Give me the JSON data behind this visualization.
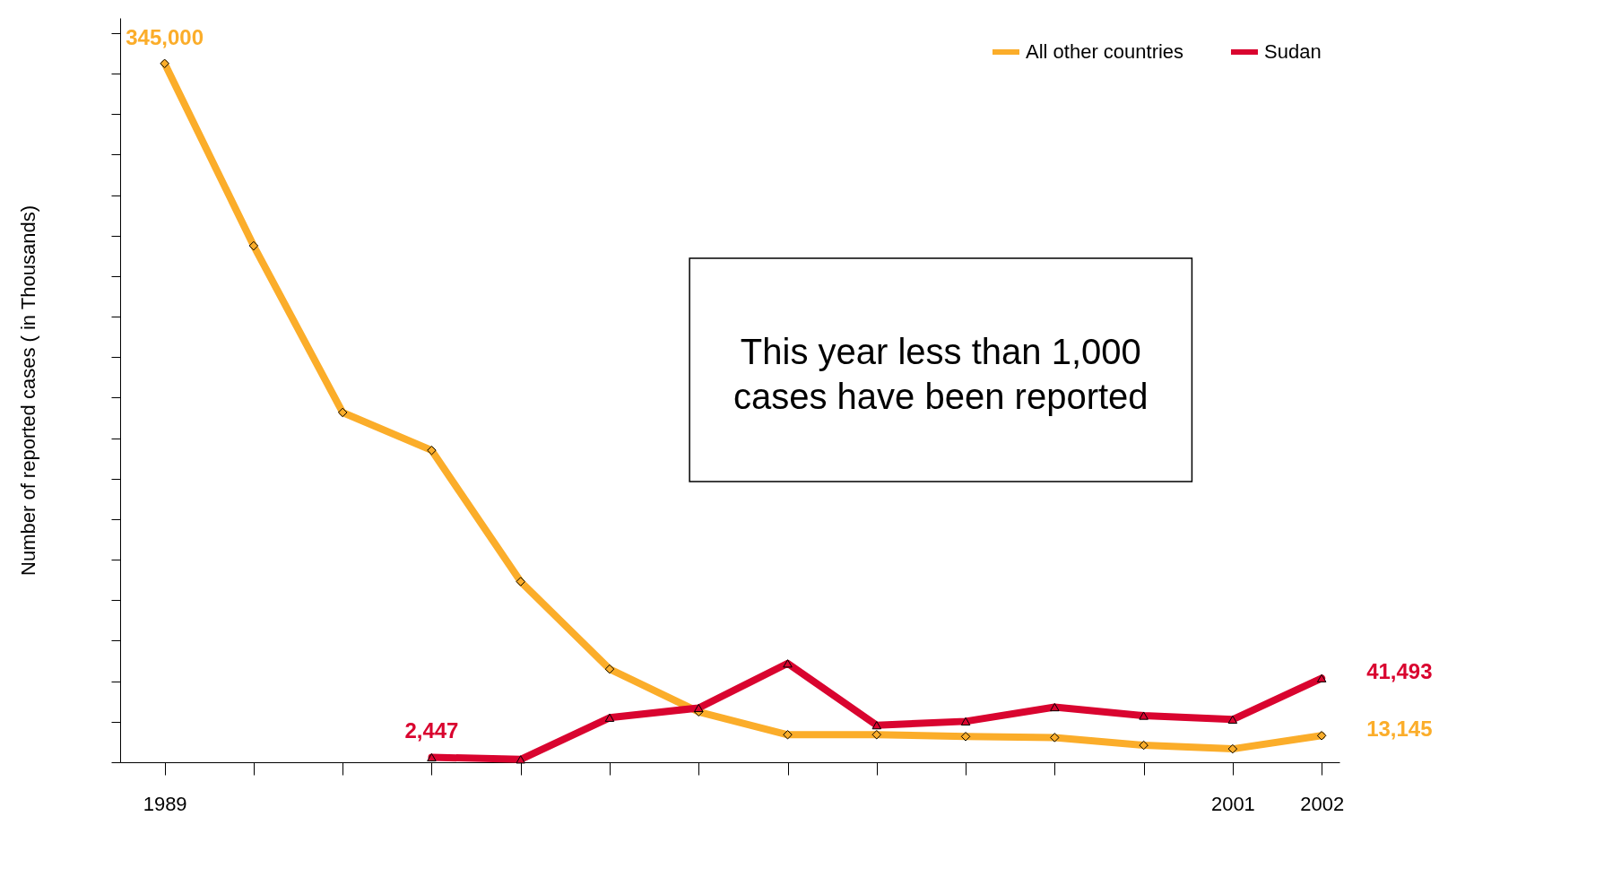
{
  "chart_data": {
    "type": "line",
    "ylabel": "Number of reported cases ( in Thousands)",
    "x": [
      1989,
      1990,
      1991,
      1992,
      1993,
      1994,
      1995,
      1996,
      1997,
      1998,
      1999,
      2000,
      2001,
      2002
    ],
    "xlim": [
      1988.5,
      2002.2
    ],
    "xticks": [
      1989,
      {
        "value": 1990,
        "label": null
      },
      {
        "value": 1991,
        "label": null
      },
      {
        "value": 1992,
        "label": null
      },
      {
        "value": 1993,
        "label": null
      },
      {
        "value": 1994,
        "label": null
      },
      {
        "value": 1995,
        "label": null
      },
      {
        "value": 1996,
        "label": null
      },
      {
        "value": 1997,
        "label": null
      },
      {
        "value": 1998,
        "label": null
      },
      {
        "value": 1999,
        "label": null
      },
      {
        "value": 2000,
        "label": null
      },
      2001,
      2002
    ],
    "ylim": [
      0,
      367500
    ],
    "yticks": [
      {
        "value": 0,
        "label": null
      },
      {
        "value": 20000,
        "label": null
      },
      {
        "value": 40000,
        "label": null
      },
      {
        "value": 60000,
        "label": null
      },
      {
        "value": 80000,
        "label": null
      },
      {
        "value": 100000,
        "label": null
      },
      {
        "value": 120000,
        "label": null
      },
      {
        "value": 140000,
        "label": null
      },
      {
        "value": 160000,
        "label": null
      },
      {
        "value": 180000,
        "label": null
      },
      {
        "value": 200000,
        "label": null
      },
      {
        "value": 220000,
        "label": null
      },
      {
        "value": 240000,
        "label": null
      },
      {
        "value": 260000,
        "label": null
      },
      {
        "value": 280000,
        "label": null
      },
      {
        "value": 300000,
        "label": null
      },
      {
        "value": 320000,
        "label": null
      },
      {
        "value": 340000,
        "label": null
      },
      {
        "value": 360000,
        "label": null
      }
    ],
    "tick_labels": "x",
    "series": [
      {
        "name": "All other countries",
        "color": "#fbad2a",
        "marker": "diamond",
        "values": [
          345000,
          255000,
          172700,
          154000,
          89200,
          46000,
          24900,
          13600,
          13600,
          12700,
          12200,
          8400,
          6600,
          13145
        ],
        "value_labels": [
          "345,000",
          null,
          null,
          null,
          null,
          null,
          null,
          null,
          null,
          null,
          null,
          null,
          null,
          "13,145"
        ]
      },
      {
        "name": "Sudan",
        "color": "#d9042f",
        "marker": "triangle",
        "values": [
          null,
          null,
          null,
          2447,
          1400,
          22000,
          26800,
          48800,
          18300,
          20200,
          27200,
          23000,
          21100,
          41493
        ],
        "value_labels": [
          null,
          null,
          null,
          "2,447",
          null,
          null,
          null,
          null,
          null,
          null,
          null,
          null,
          null,
          "41,493"
        ]
      }
    ],
    "legend": "top right",
    "grid": false,
    "annotations": [
      "This year less than 1,000 cases have been reported"
    ]
  }
}
